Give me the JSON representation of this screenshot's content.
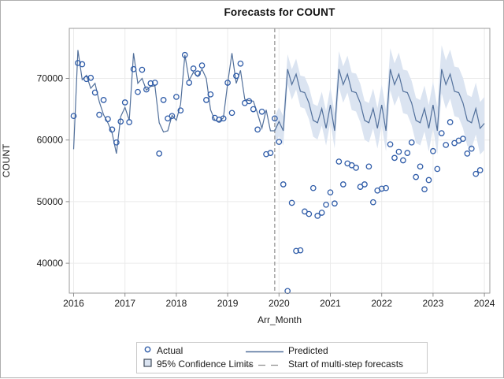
{
  "title": "Forecasts for COUNT",
  "axes": {
    "x": {
      "label": "Arr_Month",
      "tick_years": [
        2016,
        2017,
        2018,
        2019,
        2020,
        2021,
        2022,
        2023,
        2024
      ]
    },
    "y": {
      "label": "COUNT",
      "ticks": [
        40000,
        50000,
        60000,
        70000
      ]
    }
  },
  "legend": {
    "actual": "Actual",
    "ci": "95% Confidence Limits",
    "predicted": "Predicted",
    "forecast_start": "Start of multi-step forecasts"
  },
  "colors": {
    "actual_marker": "#2f5ca8",
    "predicted_line": "#52709b",
    "confidence_band": "#dbe4f1",
    "forecast_start_line": "#8f8f8f",
    "gridline": "#ebebeb",
    "frame": "#9b9b9b",
    "text": "#1a1a1a"
  },
  "chart_data": {
    "type": "line",
    "title": "Forecasts for COUNT",
    "xlabel": "Arr_Month",
    "ylabel": "COUNT",
    "x_start": "2016-01",
    "x_step_months": 1,
    "x_tick_years": [
      2016,
      2017,
      2018,
      2019,
      2020,
      2021,
      2022,
      2023,
      2024
    ],
    "y_ticks": [
      40000,
      50000,
      60000,
      70000
    ],
    "ylim": [
      35100,
      78100
    ],
    "grid": true,
    "legend_position": "bottom",
    "series": [
      {
        "name": "Actual",
        "type": "scatter",
        "marker": "open-circle",
        "x_end": "2023-12",
        "values": [
          63900,
          72500,
          72300,
          69900,
          70100,
          67700,
          64100,
          66500,
          63400,
          61700,
          59600,
          63000,
          66100,
          62900,
          71500,
          67800,
          71400,
          68200,
          69200,
          69300,
          57800,
          66500,
          63500,
          63900,
          67000,
          64800,
          73800,
          69300,
          71600,
          70800,
          72100,
          66500,
          67400,
          63600,
          63300,
          63500,
          69300,
          64400,
          70400,
          72400,
          66000,
          66300,
          65000,
          61700,
          64600,
          57700,
          57900,
          63500,
          59700,
          52800,
          35500,
          49800,
          42000,
          42100,
          48400,
          48000,
          52200,
          47700,
          48200,
          49500,
          51500,
          49700,
          56500,
          52800,
          56200,
          55900,
          55500,
          52400,
          52800,
          55700,
          49900,
          51800,
          52100,
          52200,
          59300,
          57100,
          58100,
          56700,
          57900,
          59600,
          54000,
          55700,
          52000,
          53500,
          58200,
          55300,
          61100,
          59200,
          62900,
          59500,
          59900,
          60200,
          57800,
          58600,
          54500,
          55100
        ]
      },
      {
        "name": "Predicted",
        "type": "line",
        "x_end": "2024-01",
        "values": [
          58500,
          74600,
          69800,
          70500,
          68400,
          69200,
          66200,
          64100,
          62800,
          61100,
          57800,
          63800,
          65300,
          63200,
          74100,
          69200,
          70000,
          68100,
          68700,
          68800,
          62800,
          61300,
          61500,
          64000,
          63200,
          65800,
          73800,
          69700,
          71000,
          70300,
          71500,
          70000,
          64900,
          63200,
          63000,
          63600,
          69200,
          74100,
          69200,
          71300,
          66600,
          66400,
          66300,
          64300,
          61900,
          64900,
          61500,
          61500,
          63000,
          61500,
          71500,
          69000,
          70700,
          67900,
          67700,
          66000,
          63200,
          62800,
          65100,
          61900,
          65700,
          61500,
          71500,
          69000,
          70700,
          67900,
          67700,
          66000,
          63200,
          62800,
          65100,
          61900,
          65700,
          61500,
          71500,
          69000,
          70700,
          67900,
          67700,
          66000,
          63200,
          62800,
          65100,
          61900,
          65700,
          61500,
          71500,
          69000,
          70700,
          67900,
          67700,
          66000,
          63200,
          62800,
          65100,
          61900,
          62700
        ]
      }
    ],
    "forecast": {
      "start_index": 47,
      "start_label": "2019-12",
      "ci_level": "95%",
      "ci_halfwidth_start": 2300,
      "ci_halfwidth_end": 4300
    }
  }
}
